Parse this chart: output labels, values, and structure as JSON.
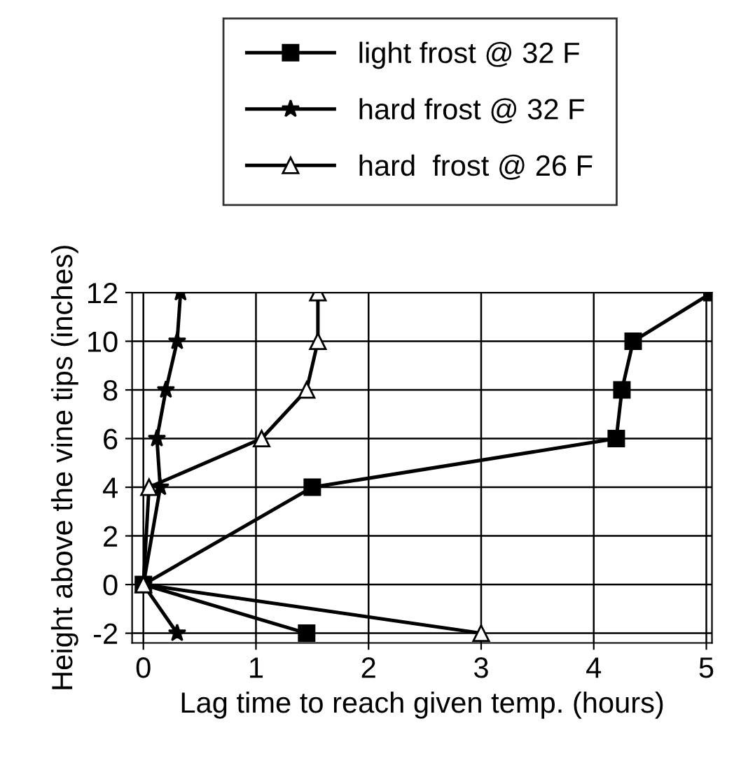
{
  "chart_data": {
    "type": "line",
    "xlabel": "Lag time to reach given temp. (hours)",
    "ylabel": "Height above the vine tips (inches)",
    "xlim": [
      -0.1,
      5.05
    ],
    "ylim": [
      -2.4,
      12
    ],
    "xticks": [
      0,
      1,
      2,
      3,
      4,
      5
    ],
    "yticks": [
      -2,
      0,
      2,
      4,
      6,
      8,
      10,
      12
    ],
    "grid": true,
    "legend": "top right",
    "series": [
      {
        "name": "light frost @ 32 F",
        "color": "#000000",
        "marker": "square",
        "x": [
          1.45,
          0,
          1.5,
          4.2,
          4.25,
          4.35,
          5.05
        ],
        "values": [
          -2,
          0,
          4,
          6,
          8,
          10,
          12
        ]
      },
      {
        "name": "hard frost @ 32 F",
        "color": "#000000",
        "marker": "star",
        "x": [
          0.3,
          0,
          0.15,
          0.12,
          0.2,
          0.3,
          0.33
        ],
        "values": [
          -2,
          0,
          4,
          6,
          8,
          10,
          12
        ]
      },
      {
        "name": "hard  frost @ 26 F",
        "color": "#000000",
        "marker": "triangle",
        "x": [
          3.0,
          0,
          0.05,
          1.05,
          1.45,
          1.55,
          1.55
        ],
        "values": [
          -2,
          0,
          4,
          6,
          8,
          10,
          12
        ]
      }
    ]
  }
}
